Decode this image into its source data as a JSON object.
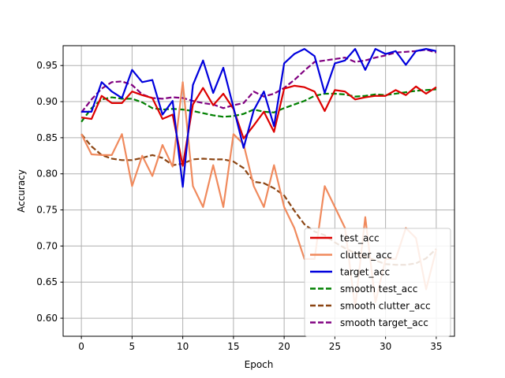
{
  "chart_data": {
    "type": "line",
    "title": "",
    "xlabel": "Epoch",
    "ylabel": "Accuracy",
    "xlim": [
      -1.8,
      36.8
    ],
    "ylim": [
      0.575,
      0.9775
    ],
    "xticks": [
      0,
      5,
      10,
      15,
      20,
      25,
      30,
      35
    ],
    "yticks": [
      0.6,
      0.65,
      0.7,
      0.75,
      0.8,
      0.85,
      0.9,
      0.95
    ],
    "ytick_labels": [
      "0.60",
      "0.65",
      "0.70",
      "0.75",
      "0.80",
      "0.85",
      "0.90",
      "0.95"
    ],
    "grid": true,
    "legend_position": "lower-right",
    "x": [
      0,
      1,
      2,
      3,
      4,
      5,
      6,
      7,
      8,
      9,
      10,
      11,
      12,
      13,
      14,
      15,
      16,
      17,
      18,
      19,
      20,
      21,
      22,
      23,
      24,
      25,
      26,
      27,
      28,
      29,
      30,
      31,
      32,
      33,
      34,
      35
    ],
    "series": [
      {
        "name": "test_acc",
        "color": "#dd0000",
        "style": "solid",
        "values": [
          0.878,
          0.876,
          0.908,
          0.898,
          0.898,
          0.914,
          0.909,
          0.905,
          0.876,
          0.882,
          0.811,
          0.896,
          0.919,
          0.895,
          0.911,
          0.89,
          0.849,
          0.867,
          0.886,
          0.858,
          0.918,
          0.922,
          0.92,
          0.914,
          0.887,
          0.916,
          0.914,
          0.903,
          0.906,
          0.908,
          0.908,
          0.916,
          0.909,
          0.921,
          0.911,
          0.92
        ]
      },
      {
        "name": "clutter_acc",
        "color": "#f08a5d",
        "style": "solid",
        "values": [
          0.855,
          0.827,
          0.826,
          0.826,
          0.855,
          0.783,
          0.825,
          0.797,
          0.84,
          0.81,
          0.927,
          0.783,
          0.754,
          0.812,
          0.754,
          0.855,
          0.841,
          0.783,
          0.754,
          0.812,
          0.754,
          0.725,
          0.682,
          0.682,
          0.783,
          0.754,
          0.725,
          0.615,
          0.74,
          0.622,
          0.682,
          0.682,
          0.725,
          0.711,
          0.64,
          0.695
        ]
      },
      {
        "name": "target_acc",
        "color": "#0000dd",
        "style": "solid",
        "values": [
          0.886,
          0.886,
          0.927,
          0.914,
          0.905,
          0.944,
          0.927,
          0.93,
          0.882,
          0.901,
          0.782,
          0.923,
          0.957,
          0.912,
          0.947,
          0.892,
          0.836,
          0.888,
          0.914,
          0.866,
          0.953,
          0.966,
          0.973,
          0.963,
          0.912,
          0.953,
          0.957,
          0.973,
          0.944,
          0.973,
          0.966,
          0.97,
          0.951,
          0.97,
          0.973,
          0.97
        ]
      },
      {
        "name": "smooth test_acc",
        "color": "#008000",
        "style": "dashed",
        "values": [
          0.872,
          0.891,
          0.903,
          0.906,
          0.904,
          0.904,
          0.899,
          0.891,
          0.889,
          0.89,
          0.889,
          0.887,
          0.884,
          0.881,
          0.879,
          0.88,
          0.883,
          0.889,
          0.886,
          0.885,
          0.891,
          0.896,
          0.901,
          0.908,
          0.911,
          0.911,
          0.91,
          0.907,
          0.908,
          0.91,
          0.909,
          0.911,
          0.913,
          0.915,
          0.916,
          0.917
        ]
      },
      {
        "name": "smooth clutter_acc",
        "color": "#8b4513",
        "style": "dashed",
        "values": [
          0.855,
          0.838,
          0.826,
          0.821,
          0.819,
          0.819,
          0.822,
          0.826,
          0.822,
          0.812,
          0.814,
          0.82,
          0.821,
          0.82,
          0.82,
          0.817,
          0.808,
          0.789,
          0.787,
          0.78,
          0.77,
          0.749,
          0.73,
          0.72,
          0.715,
          0.705,
          0.697,
          0.69,
          0.685,
          0.68,
          0.675,
          0.674,
          0.674,
          0.676,
          0.683,
          0.696
        ]
      },
      {
        "name": "smooth target_acc",
        "color": "#800080",
        "style": "dashed",
        "values": [
          0.885,
          0.903,
          0.918,
          0.927,
          0.928,
          0.923,
          0.91,
          0.905,
          0.904,
          0.906,
          0.905,
          0.901,
          0.898,
          0.896,
          0.891,
          0.895,
          0.898,
          0.914,
          0.907,
          0.911,
          0.919,
          0.93,
          0.943,
          0.955,
          0.957,
          0.959,
          0.961,
          0.955,
          0.957,
          0.961,
          0.964,
          0.968,
          0.969,
          0.97,
          0.972,
          0.968
        ]
      }
    ]
  }
}
